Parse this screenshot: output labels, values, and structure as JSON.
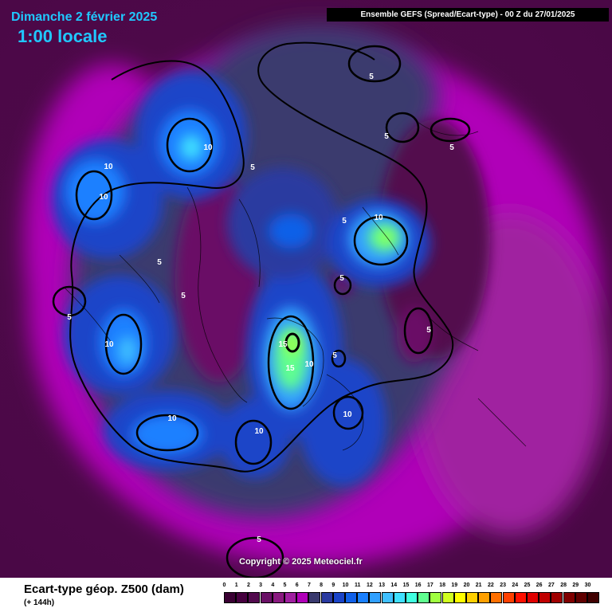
{
  "header": {
    "date": "Dimanche 2 février 2025",
    "local_time": "1:00 locale",
    "model": "Ensemble GEFS  (Spread/Ecart-type) - 00 Z du 27/01/2025"
  },
  "copyright": "Copyright © 2025 Meteociel.fr",
  "legend": {
    "title": "Ecart-type géop. Z500 (dam)",
    "lead": "(+ 144h)",
    "ticks": [
      "0",
      "1",
      "2",
      "3",
      "4",
      "5",
      "6",
      "7",
      "8",
      "9",
      "10",
      "11",
      "12",
      "13",
      "14",
      "15",
      "16",
      "17",
      "18",
      "19",
      "20",
      "21",
      "22",
      "23",
      "24",
      "25",
      "26",
      "27",
      "28",
      "29",
      "30"
    ],
    "colors": [
      "#3a0033",
      "#46003f",
      "#520a4e",
      "#6a1066",
      "#8a1a80",
      "#a020a0",
      "#b000b8",
      "#3a3a6e",
      "#2a3aa0",
      "#1a44c8",
      "#1060e8",
      "#1a80ff",
      "#30a0ff",
      "#40c0ff",
      "#40e0ff",
      "#40ffe0",
      "#60ff90",
      "#a0ff40",
      "#d0ff20",
      "#ffff00",
      "#ffd000",
      "#ffa000",
      "#ff7000",
      "#ff4000",
      "#ff1000",
      "#e00000",
      "#c00000",
      "#a00000",
      "#800000",
      "#600000",
      "#400000"
    ]
  },
  "contour_labels": [
    {
      "text": "5"
    },
    {
      "text": "5"
    },
    {
      "text": "5"
    },
    {
      "text": "5"
    },
    {
      "text": "5"
    },
    {
      "text": "5"
    },
    {
      "text": "5"
    },
    {
      "text": "5"
    },
    {
      "text": "5"
    },
    {
      "text": "5"
    },
    {
      "text": "5"
    },
    {
      "text": "5"
    },
    {
      "text": "10"
    },
    {
      "text": "10"
    },
    {
      "text": "10"
    },
    {
      "text": "10"
    },
    {
      "text": "10"
    },
    {
      "text": "10"
    },
    {
      "text": "10"
    },
    {
      "text": "10"
    },
    {
      "text": "10"
    },
    {
      "text": "15"
    },
    {
      "text": "15"
    }
  ]
}
